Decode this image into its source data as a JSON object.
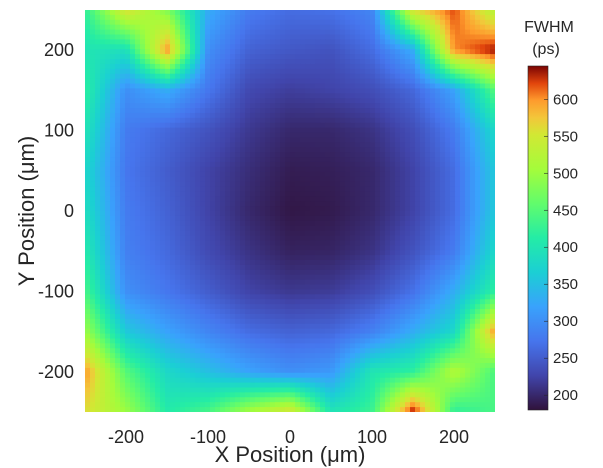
{
  "chart_data": {
    "type": "heatmap",
    "title": "",
    "xlabel": "X Position (μm)",
    "ylabel": "Y Position (μm)",
    "xlim": [
      -250,
      250
    ],
    "ylim": [
      -250,
      250
    ],
    "xticks": [
      -200,
      -100,
      0,
      100,
      200
    ],
    "yticks": [
      -200,
      -100,
      0,
      100,
      200
    ],
    "grid": false,
    "colorbar": {
      "title_line1": "FWHM",
      "title_line2": "(ps)",
      "range": [
        180,
        645
      ],
      "ticks": [
        200,
        250,
        300,
        350,
        400,
        450,
        500,
        550,
        600
      ],
      "colormap": "turbo"
    },
    "grid_x": [
      -250,
      -200,
      -150,
      -100,
      -50,
      0,
      50,
      100,
      150,
      200,
      250
    ],
    "grid_y": [
      250,
      200,
      150,
      100,
      50,
      0,
      -50,
      -100,
      -150,
      -200,
      -250
    ],
    "values": [
      [
        420,
        560,
        480,
        330,
        280,
        265,
        270,
        290,
        560,
        620,
        520
      ],
      [
        400,
        390,
        600,
        300,
        255,
        245,
        240,
        265,
        330,
        600,
        640
      ],
      [
        420,
        300,
        330,
        275,
        230,
        220,
        225,
        235,
        260,
        320,
        450
      ],
      [
        400,
        280,
        260,
        240,
        215,
        200,
        200,
        210,
        235,
        280,
        380
      ],
      [
        380,
        275,
        250,
        225,
        205,
        190,
        192,
        200,
        225,
        265,
        360
      ],
      [
        390,
        280,
        255,
        225,
        200,
        185,
        188,
        200,
        225,
        265,
        360
      ],
      [
        410,
        285,
        262,
        232,
        210,
        195,
        197,
        210,
        240,
        280,
        380
      ],
      [
        440,
        300,
        275,
        250,
        225,
        215,
        218,
        235,
        270,
        330,
        420
      ],
      [
        500,
        360,
        320,
        290,
        265,
        255,
        260,
        285,
        330,
        380,
        600
      ],
      [
        600,
        450,
        380,
        350,
        320,
        300,
        310,
        400,
        420,
        520,
        440
      ],
      [
        560,
        500,
        410,
        440,
        510,
        560,
        400,
        430,
        640,
        420,
        440
      ]
    ]
  }
}
